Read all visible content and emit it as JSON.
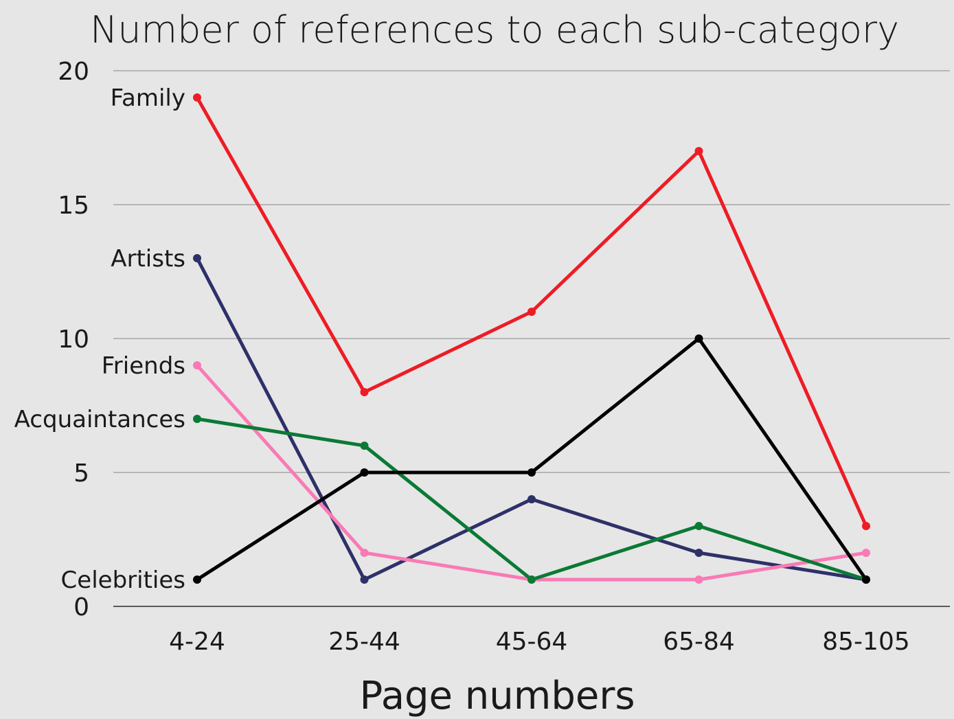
{
  "chart_data": {
    "type": "line",
    "title": "Number of references to each sub-category",
    "xlabel": "Page numbers",
    "ylabel": "",
    "categories": [
      "4-24",
      "25-44",
      "45-64",
      "65-84",
      "85-105"
    ],
    "ylim": [
      0,
      20
    ],
    "yticks": [
      "0",
      "5",
      "10",
      "15",
      "20"
    ],
    "grid": true,
    "legend": "labels at start of each line",
    "series": [
      {
        "name": "Family",
        "color": "#ee1c25",
        "values": [
          19,
          8,
          11,
          17,
          3
        ]
      },
      {
        "name": "Artists",
        "color": "#2e3168",
        "values": [
          13,
          1,
          4,
          2,
          1
        ]
      },
      {
        "name": "Friends",
        "color": "#f97ab4",
        "values": [
          9,
          2,
          1,
          1,
          2
        ]
      },
      {
        "name": "Acquaintances",
        "color": "#0a7a35",
        "values": [
          7,
          6,
          1,
          3,
          1
        ]
      },
      {
        "name": "Celebrities",
        "color": "#000000",
        "values": [
          1,
          5,
          5,
          10,
          1
        ]
      }
    ]
  }
}
